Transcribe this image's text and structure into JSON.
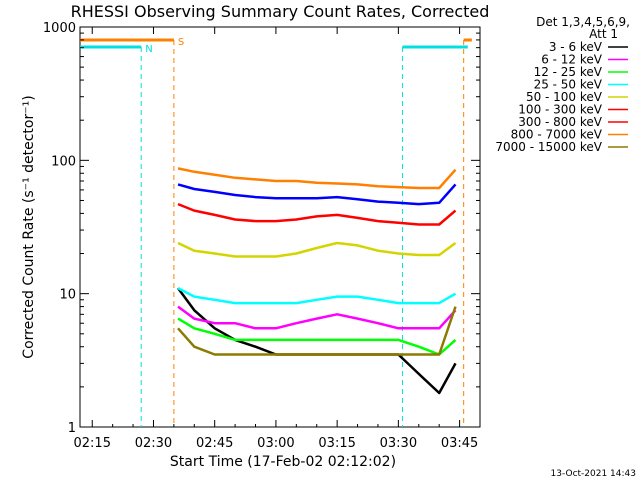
{
  "chart_data": {
    "type": "line",
    "title": "RHESSI Observing Summary Count Rates, Corrected",
    "xlabel": "Start Time (17-Feb-02 02:12:02)",
    "ylabel": "Corrected Count Rate (s⁻¹ detector⁻¹)",
    "y_scale": "log",
    "ylim": [
      1,
      1000
    ],
    "xlim": [
      "02:12",
      "03:50"
    ],
    "x_ticks": [
      "02:15",
      "02:30",
      "02:45",
      "03:00",
      "03:15",
      "03:30",
      "03:45"
    ],
    "y_ticks": [
      "1",
      "10",
      "100",
      "1000"
    ],
    "grid": false,
    "legend_position": "top-right",
    "legend_header": [
      "Det 1,3,4,5,6,9,",
      "Att 1"
    ],
    "footer_date": "13-Oct-2021 14:43",
    "markers": [
      {
        "label": "N",
        "color": "#00e0e0",
        "state_times": [
          [
            "02:12",
            "02:27"
          ],
          [
            "03:31",
            "03:47"
          ]
        ],
        "line_times": [
          "02:27",
          "03:31"
        ]
      },
      {
        "label": "S",
        "color": "#ff8000",
        "state_times": [
          [
            "02:12",
            "02:35"
          ],
          [
            "03:46",
            "03:48"
          ]
        ],
        "line_times": [
          "02:35",
          "03:46"
        ]
      }
    ],
    "x": [
      "02:36",
      "02:40",
      "02:45",
      "02:50",
      "02:55",
      "03:00",
      "03:05",
      "03:10",
      "03:15",
      "03:20",
      "03:25",
      "03:30",
      "03:35",
      "03:40",
      "03:44"
    ],
    "series": [
      {
        "name": "3 - 6 keV",
        "color": "#000000",
        "values": [
          11,
          7.5,
          5.5,
          4.5,
          4,
          3.5,
          3.5,
          3.5,
          3.5,
          3.5,
          3.5,
          3.5,
          2.5,
          1.8,
          3
        ]
      },
      {
        "name": "6 - 12 keV",
        "color": "#ff00ff",
        "values": [
          8,
          6.5,
          6,
          6,
          5.5,
          5.5,
          6,
          6.5,
          7,
          6.5,
          6,
          5.5,
          5.5,
          5.5,
          7.5
        ]
      },
      {
        "name": "12 - 25 keV",
        "color": "#00ff00",
        "values": [
          6.5,
          5.5,
          5,
          4.5,
          4.5,
          4.5,
          4.5,
          4.5,
          4.5,
          4.5,
          4.5,
          4.5,
          4,
          3.5,
          4.5
        ]
      },
      {
        "name": "25 - 50 keV",
        "color": "#00ffff",
        "values": [
          11,
          9.5,
          9,
          8.5,
          8.5,
          8.5,
          8.5,
          9,
          9.5,
          9.5,
          9,
          8.5,
          8.5,
          8.5,
          10
        ]
      },
      {
        "name": "50 - 100 keV",
        "color": "#d4d400",
        "values": [
          24,
          21,
          20,
          19,
          19,
          19,
          20,
          22,
          24,
          23,
          21,
          20,
          19.5,
          19.5,
          24
        ]
      },
      {
        "name": "100 - 300 keV",
        "color": "#ff0000",
        "values": [
          47,
          42,
          39,
          36,
          35,
          35,
          36,
          38,
          39,
          37,
          35,
          34,
          33,
          33,
          42
        ]
      },
      {
        "name": "300 - 800 keV",
        "color": "#ff0000",
        "values": [
          null,
          null,
          null,
          null,
          null,
          null,
          null,
          null,
          null,
          null,
          null,
          null,
          null,
          null,
          null
        ]
      },
      {
        "name": "800 - 7000 keV",
        "color": "#ff8000",
        "values": [
          87,
          82,
          78,
          74,
          72,
          70,
          70,
          68,
          67,
          66,
          64,
          63,
          62,
          62,
          85
        ]
      },
      {
        "name": "7000 - 15000 keV",
        "color": "#8b7b00",
        "values": [
          5.5,
          4,
          3.5,
          3.5,
          3.5,
          3.5,
          3.5,
          3.5,
          3.5,
          3.5,
          3.5,
          3.5,
          3.5,
          3.5,
          8
        ]
      },
      {
        "name": "",
        "color": "#0000ff",
        "values": [
          66,
          61,
          58,
          55,
          53,
          52,
          52,
          52,
          53,
          51,
          49,
          48,
          47,
          48,
          66
        ]
      }
    ]
  }
}
